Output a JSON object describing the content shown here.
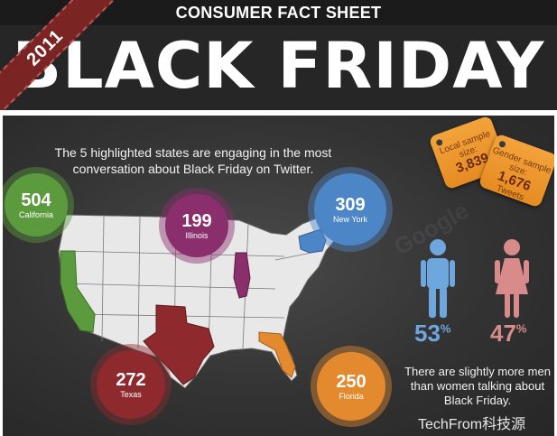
{
  "header": {
    "sheet_title": "CONSUMER FACT SHEET",
    "main_title": "BLACK FRIDAY",
    "year": "2011"
  },
  "intro": "The 5 highlighted states are engaging in the most conversation about Black Friday on Twitter.",
  "states": {
    "california": {
      "count": "504",
      "name": "California",
      "color": "#5c9a3e"
    },
    "illinois": {
      "count": "199",
      "name": "Illinois",
      "color": "#8a2e6c"
    },
    "new_york": {
      "count": "309",
      "name": "New York",
      "color": "#4d86c6"
    },
    "texas": {
      "count": "272",
      "name": "Texas",
      "color": "#8e2a2e"
    },
    "florida": {
      "count": "250",
      "name": "Florida",
      "color": "#e38a2e"
    }
  },
  "tags": {
    "local": {
      "label": "Local sample size:",
      "value": "3,839"
    },
    "gender": {
      "label": "Gender sample size:",
      "value": "1,676",
      "sub": "Tweets"
    }
  },
  "gender": {
    "men_pct": "53",
    "women_pct": "47",
    "pct_symbol": "%",
    "men_color": "#6ea6de",
    "women_color": "#d98b8b",
    "note": "There are slightly more men than women talking about Black Friday."
  },
  "watermark": "Google",
  "credit": "TechFrom科技源"
}
